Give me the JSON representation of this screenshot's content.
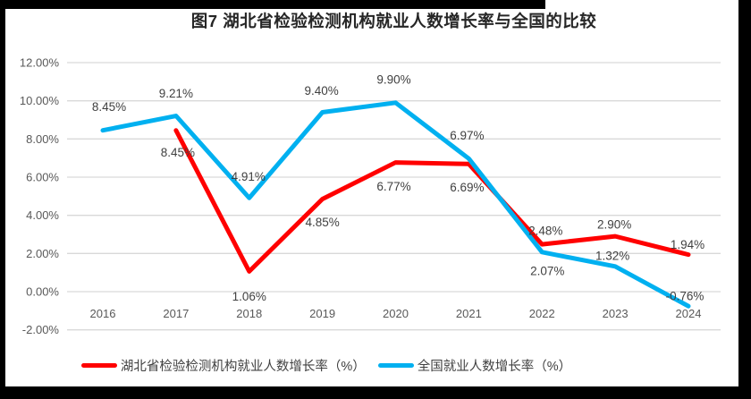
{
  "title": "图7 湖北省检验检测机构就业人数增长率与全国的比较",
  "chart_data": {
    "type": "line",
    "title": "图7 湖北省检验检测机构就业人数增长率与全国的比较",
    "categories": [
      "2016",
      "2017",
      "2018",
      "2019",
      "2020",
      "2021",
      "2022",
      "2023",
      "2024"
    ],
    "series": [
      {
        "name": "湖北省检验检测机构就业人数增长率（%）",
        "color": "#FF0000",
        "values": [
          null,
          8.45,
          1.06,
          4.85,
          6.77,
          6.69,
          2.48,
          2.9,
          1.94
        ],
        "data_labels": [
          "",
          "8.45%",
          "1.06%",
          "4.85%",
          "6.77%",
          "6.69%",
          "2.48%",
          "2.90%",
          "1.94%"
        ],
        "label_dy": [
          0,
          25,
          28,
          26,
          27,
          26,
          -15,
          -13,
          -11
        ],
        "label_dx": [
          0,
          2,
          0,
          0,
          -2,
          -2,
          4,
          -1,
          -1
        ]
      },
      {
        "name": "全国就业人数增长率（%）",
        "color": "#00B0F0",
        "values": [
          8.45,
          9.21,
          4.91,
          9.4,
          9.9,
          6.97,
          2.07,
          1.32,
          -0.76
        ],
        "data_labels": [
          "8.45%",
          "9.21%",
          "4.91%",
          "9.40%",
          "9.90%",
          "6.97%",
          "2.07%",
          "1.32%",
          "-0.76%"
        ],
        "label_dy": [
          -26,
          -25,
          -24,
          -24,
          -26,
          -26,
          21,
          -12,
          -11
        ],
        "label_dx": [
          7,
          0,
          -1,
          -1,
          -2,
          -2,
          6,
          -3,
          -4
        ]
      }
    ],
    "y_axis": {
      "ticks": [
        "12.00%",
        "10.00%",
        "8.00%",
        "6.00%",
        "4.00%",
        "2.00%",
        "0.00%",
        "-2.00%"
      ],
      "tick_values": [
        12,
        10,
        8,
        6,
        4,
        2,
        0,
        -2
      ],
      "min": -2,
      "max": 12,
      "step": 2
    },
    "grid": true,
    "data_labels_shown": true,
    "legend_position": "bottom"
  },
  "colors": {
    "hubei_series": "#FF0000",
    "national_series": "#00B0F0",
    "gridline": "#D9D9D9",
    "axis_text": "#595959",
    "data_label_text": "#404040",
    "title_text": "#262626",
    "frame_border": "#000000",
    "background": "#FFFFFF"
  }
}
